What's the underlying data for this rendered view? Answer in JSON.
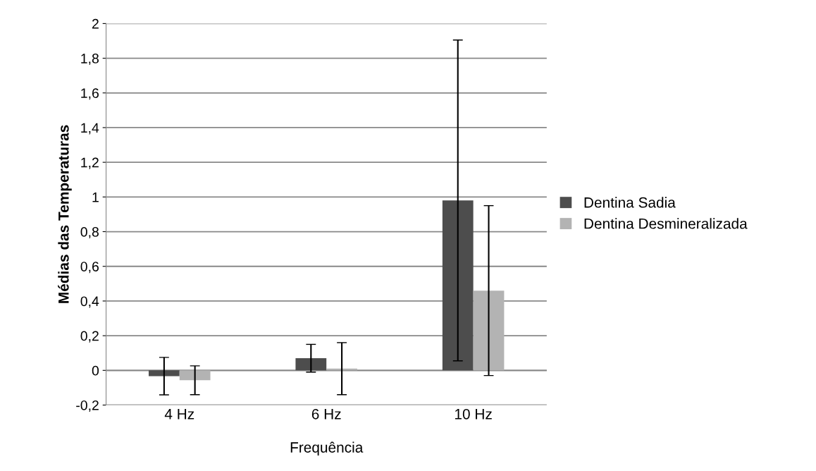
{
  "chart_data": {
    "type": "bar",
    "xlabel": "Frequência",
    "ylabel": "Médias das Temperaturas",
    "categories": [
      "4 Hz",
      "6 Hz",
      "10 Hz"
    ],
    "series": [
      {
        "name": "Dentina Sadia",
        "color": "#4d4d4d",
        "values": [
          -0.033,
          0.07,
          0.98
        ],
        "errors": [
          0.108,
          0.08,
          0.925
        ]
      },
      {
        "name": "Dentina Desmineralizada",
        "color": "#b3b3b3",
        "values": [
          -0.057,
          0.01,
          0.46
        ],
        "errors": [
          0.083,
          0.15,
          0.49
        ]
      }
    ],
    "ylim": [
      -0.2,
      2
    ],
    "yticks": [
      {
        "value": -0.2,
        "label": "-0,2"
      },
      0,
      {
        "value": 0.2,
        "label": "0,2"
      },
      {
        "value": 0.4,
        "label": "0,4"
      },
      {
        "value": 0.6,
        "label": "0,6"
      },
      {
        "value": 0.8,
        "label": "0,8"
      },
      1,
      {
        "value": 1.2,
        "label": "1,2"
      },
      {
        "value": 1.4,
        "label": "1,4"
      },
      {
        "value": 1.6,
        "label": "1,6"
      },
      {
        "value": 1.8,
        "label": "1,8"
      },
      2
    ],
    "grid": "y",
    "legend": "right"
  }
}
